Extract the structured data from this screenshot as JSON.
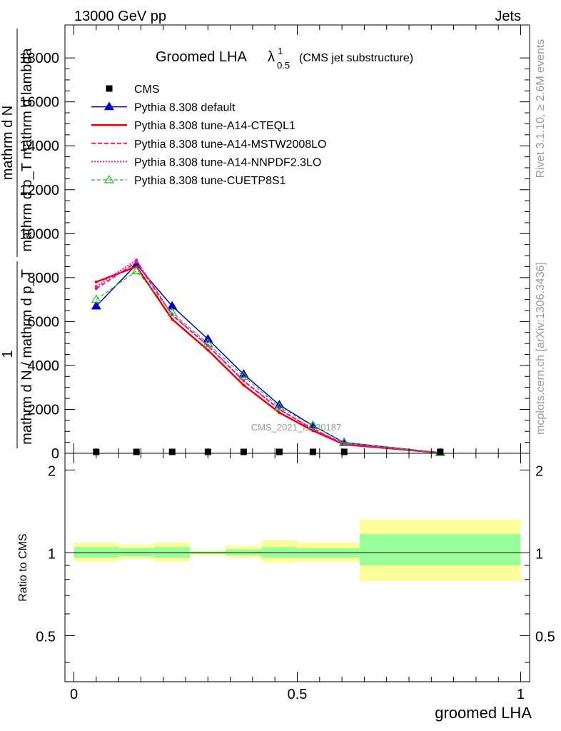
{
  "header": {
    "left": "13000 GeV pp",
    "right": "Jets"
  },
  "plot_title": {
    "main": "Groomed LHA",
    "lambda": "λ",
    "superscript": "1",
    "subscript": "0.5",
    "suffix": "(CMS jet substructure)"
  },
  "side_labels": {
    "rivet": "Rivet 3.1.10, ≥ 2.6M events",
    "mcplots": "mcplots.cern.ch [arXiv:1306.3436]"
  },
  "watermark": "CMS_2021_I1920187",
  "ylabel_top": {
    "numerator_left": "1",
    "denominator_left": "mathrm d N / mathrm d p_T",
    "numerator_right": "mathrm d N",
    "denominator_right": "mathrm d p_T mathrm d lambda"
  },
  "ylabel_ratio": "Ratio to CMS",
  "xlabel": "groomed LHA",
  "colors": {
    "cms": "#000000",
    "default": "#0000cc",
    "cteql1": "#ee0000",
    "mstw": "#ee1177",
    "nnpdf": "#ee11cc",
    "cuetp8s1": "#22bb22",
    "band_inner": "#99ff99",
    "band_outer": "#ffff99"
  },
  "legend": [
    {
      "key": "cms",
      "label": "CMS"
    },
    {
      "key": "default",
      "label": "Pythia 8.308 default"
    },
    {
      "key": "cteql1",
      "label": "Pythia 8.308 tune-A14-CTEQL1"
    },
    {
      "key": "mstw",
      "label": "Pythia 8.308 tune-A14-MSTW2008LO"
    },
    {
      "key": "nnpdf",
      "label": "Pythia 8.308 tune-A14-NNPDF2.3LO"
    },
    {
      "key": "cuetp8s1",
      "label": "Pythia 8.308 tune-CUETP8S1"
    }
  ],
  "chart_data": [
    {
      "type": "line",
      "ylim": [
        0,
        19500
      ],
      "xlim": [
        -0.02,
        1.02
      ],
      "yticks": [
        {
          "v": 0,
          "label": "0"
        },
        {
          "v": 2000,
          "label": "2000"
        },
        {
          "v": 4000,
          "label": "4000"
        },
        {
          "v": 6000,
          "label": "6000"
        },
        {
          "v": 8000,
          "label": "8000"
        },
        {
          "v": 10000,
          "label": "10000"
        },
        {
          "v": 12000,
          "label": "12000"
        },
        {
          "v": 14000,
          "label": "14000"
        },
        {
          "v": 16000,
          "label": "16000"
        },
        {
          "v": 18000,
          "label": "18000"
        }
      ],
      "x": [
        0.05,
        0.14,
        0.22,
        0.3,
        0.38,
        0.46,
        0.535,
        0.605,
        0.82
      ],
      "cms_values": [
        0,
        0,
        0,
        0,
        0,
        0,
        0,
        0,
        0
      ],
      "series": [
        {
          "key": "default",
          "name": "Pythia 8.308 default",
          "values": [
            6700,
            8600,
            6700,
            5200,
            3600,
            2200,
            1260,
            490,
            30
          ]
        },
        {
          "key": "cteql1",
          "name": "Pythia 8.308 tune-A14-CTEQL1",
          "values": [
            7800,
            8500,
            6100,
            4700,
            3100,
            1850,
            1030,
            400,
            25
          ]
        },
        {
          "key": "mstw",
          "name": "Pythia 8.308 tune-A14-MSTW2008LO",
          "values": [
            7500,
            8700,
            6300,
            4900,
            3300,
            2000,
            1100,
            430,
            25
          ]
        },
        {
          "key": "nnpdf",
          "name": "Pythia 8.308 tune-A14-NNPDF2.3LO",
          "values": [
            7600,
            8800,
            6300,
            4900,
            3300,
            2000,
            1100,
            430,
            25
          ]
        },
        {
          "key": "cuetp8s1",
          "name": "Pythia 8.308 tune-CUETP8S1",
          "values": [
            7000,
            8300,
            6400,
            5000,
            3500,
            2100,
            1250,
            480,
            30
          ]
        }
      ]
    },
    {
      "type": "area",
      "ylim": [
        0.34,
        2.3
      ],
      "xlim": [
        -0.02,
        1.02
      ],
      "yscale": "log",
      "xticks": [
        {
          "v": 0,
          "label": "0"
        },
        {
          "v": 0.5,
          "label": "0.5"
        },
        {
          "v": 1,
          "label": "1"
        }
      ],
      "yticks": [
        {
          "v": 0.5,
          "label": "0.5"
        },
        {
          "v": 1,
          "label": "1"
        },
        {
          "v": 2,
          "label": "2"
        }
      ],
      "bins": [
        {
          "x0": 0.0,
          "x1": 0.1,
          "inner": [
            0.96,
            1.05
          ],
          "outer": [
            0.93,
            1.09
          ]
        },
        {
          "x0": 0.1,
          "x1": 0.18,
          "inner": [
            0.97,
            1.04
          ],
          "outer": [
            0.95,
            1.07
          ]
        },
        {
          "x0": 0.18,
          "x1": 0.26,
          "inner": [
            0.96,
            1.05
          ],
          "outer": [
            0.93,
            1.09
          ]
        },
        {
          "x0": 0.26,
          "x1": 0.34,
          "inner": [
            0.99,
            1.01
          ],
          "outer": [
            0.98,
            1.02
          ]
        },
        {
          "x0": 0.34,
          "x1": 0.42,
          "inner": [
            0.98,
            1.03
          ],
          "outer": [
            0.96,
            1.06
          ]
        },
        {
          "x0": 0.42,
          "x1": 0.5,
          "inner": [
            0.96,
            1.05
          ],
          "outer": [
            0.92,
            1.11
          ]
        },
        {
          "x0": 0.5,
          "x1": 0.64,
          "inner": [
            0.96,
            1.04
          ],
          "outer": [
            0.93,
            1.09
          ]
        },
        {
          "x0": 0.64,
          "x1": 1.0,
          "inner": [
            0.9,
            1.17
          ],
          "outer": [
            0.79,
            1.32
          ]
        }
      ]
    }
  ]
}
